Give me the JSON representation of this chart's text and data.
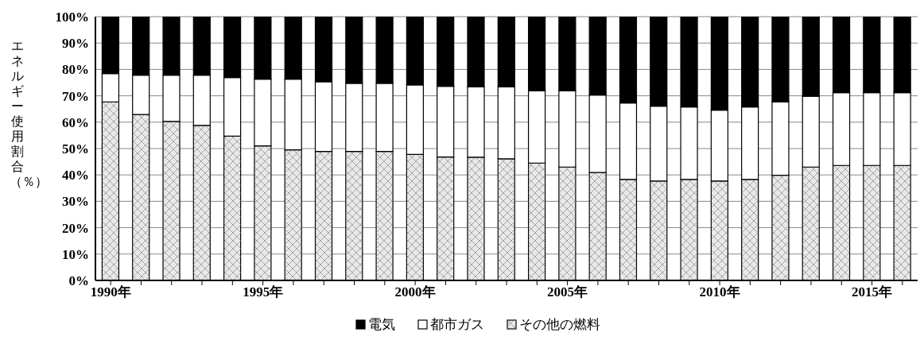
{
  "chart_data": {
    "type": "bar",
    "stacked": true,
    "ylabel": "エネルギー使用割合（％）",
    "categories": [
      "1990年",
      null,
      null,
      null,
      null,
      "1995年",
      null,
      null,
      null,
      null,
      "2000年",
      null,
      null,
      null,
      null,
      "2005年",
      null,
      null,
      null,
      null,
      "2010年",
      null,
      null,
      null,
      null,
      "2015年",
      null
    ],
    "series": [
      {
        "name": "その他の燃料",
        "color": "#e8e8e8",
        "values": [
          67.7,
          62.9,
          60.3,
          58.8,
          54.7,
          51.0,
          49.5,
          48.9,
          48.9,
          48.9,
          47.8,
          46.8,
          46.7,
          46.1,
          44.5,
          43.0,
          40.9,
          38.3,
          37.7,
          38.3,
          37.7,
          38.3,
          39.9,
          43.0,
          43.6,
          43.6,
          43.6
        ]
      },
      {
        "name": "都市ガス",
        "color": "#ffffff",
        "values": [
          10.7,
          14.9,
          17.5,
          19.0,
          22.2,
          25.3,
          26.8,
          26.4,
          25.8,
          25.8,
          26.3,
          26.8,
          26.7,
          27.3,
          27.4,
          28.9,
          29.4,
          29.0,
          28.4,
          27.5,
          26.9,
          27.5,
          27.8,
          26.8,
          27.6,
          27.6,
          27.6
        ]
      },
      {
        "name": "電気",
        "color": "#000000",
        "values": [
          21.6,
          22.2,
          22.2,
          22.2,
          23.1,
          23.7,
          23.7,
          24.7,
          25.3,
          25.3,
          25.9,
          26.4,
          26.6,
          26.6,
          28.1,
          28.1,
          29.7,
          32.7,
          33.9,
          34.2,
          35.4,
          34.2,
          32.3,
          30.2,
          28.8,
          28.8,
          28.8
        ]
      }
    ],
    "ylim": [
      0,
      100
    ],
    "yticks": [
      {
        "value": 0,
        "label": "0%"
      },
      {
        "value": 10,
        "label": "10%"
      },
      {
        "value": 20,
        "label": "20%"
      },
      {
        "value": 30,
        "label": "30%"
      },
      {
        "value": 40,
        "label": "40%"
      },
      {
        "value": 50,
        "label": "50%"
      },
      {
        "value": 60,
        "label": "60%"
      },
      {
        "value": 70,
        "label": "70%"
      },
      {
        "value": 80,
        "label": "80%"
      },
      {
        "value": 90,
        "label": "90%"
      },
      {
        "value": 100,
        "label": "100%"
      }
    ],
    "grid": "y",
    "legend": "bottom"
  }
}
